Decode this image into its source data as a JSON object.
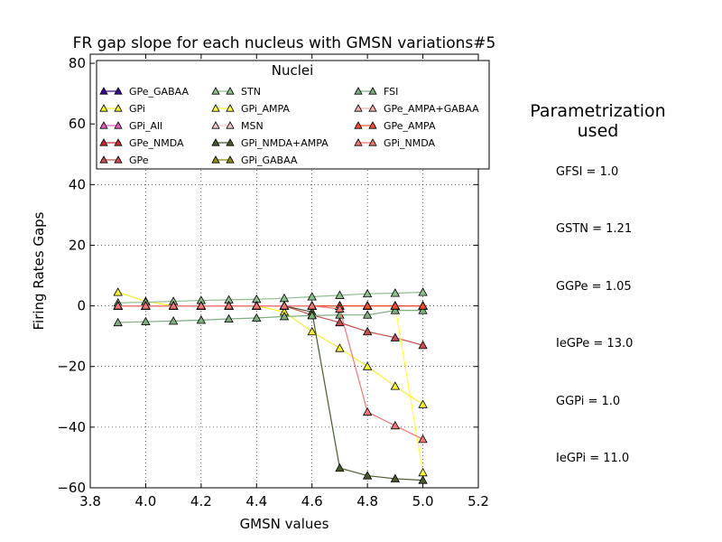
{
  "chart_data": {
    "type": "line",
    "title": "FR gap slope for each nucleus with GMSN variations#5",
    "xlabel": "GMSN values",
    "ylabel": "Firing Rates Gaps",
    "xlim": [
      3.8,
      5.2
    ],
    "ylim": [
      -60,
      83
    ],
    "xticks": [
      3.8,
      4.0,
      4.2,
      4.4,
      4.6,
      4.8,
      5.0,
      5.2
    ],
    "xtick_labels": [
      "3.8",
      "4.0",
      "4.2",
      "4.4",
      "4.6",
      "4.8",
      "5.0",
      "5.2"
    ],
    "yticks": [
      -60,
      -40,
      -20,
      0,
      20,
      40,
      60,
      80
    ],
    "ytick_labels": [
      "−60",
      "−40",
      "−20",
      "0",
      "20",
      "40",
      "60",
      "80"
    ],
    "grid": true,
    "legend_title": "Nuclei",
    "legend_position": "top",
    "x": [
      3.9,
      4.0,
      4.1,
      4.2,
      4.3,
      4.4,
      4.5,
      4.6,
      4.7,
      4.8,
      4.9,
      5.0
    ],
    "series": [
      {
        "name": "GPe_GABAA",
        "color": "#3d0a91",
        "values": [
          0,
          0,
          0,
          0,
          0,
          0,
          0,
          0,
          0,
          0,
          0,
          0
        ]
      },
      {
        "name": "GPi",
        "color": "#f5f030",
        "values": [
          4.5,
          1.5,
          0,
          0,
          0,
          0,
          -2,
          -8.5,
          -14,
          -20,
          -26.5,
          -32.5
        ]
      },
      {
        "name": "GPi_All",
        "color": "#e060c0",
        "values": [
          0,
          0,
          0,
          0,
          0,
          0,
          0,
          0,
          0,
          0,
          0,
          0
        ]
      },
      {
        "name": "GPe_NMDA",
        "color": "#c03030",
        "values": [
          0,
          0,
          0,
          0,
          0,
          0,
          0,
          0,
          0,
          0,
          0,
          0
        ]
      },
      {
        "name": "GPe",
        "color": "#c05050",
        "values": [
          0,
          0,
          0,
          0,
          0,
          0,
          0,
          -3,
          -5.5,
          -8.5,
          -10.5,
          -13
        ]
      },
      {
        "name": "STN",
        "color": "#8fbf8f",
        "values": [
          1,
          1.2,
          1.5,
          1.8,
          2,
          2.2,
          2.5,
          3,
          3.5,
          4,
          4.2,
          4.5
        ]
      },
      {
        "name": "GPi_AMPA",
        "color": "#ffff40",
        "values": [
          0,
          0,
          0,
          0,
          0,
          0,
          0,
          0,
          0,
          0,
          0,
          -55
        ]
      },
      {
        "name": "MSN",
        "color": "#f0c8c8",
        "values": [
          0,
          0,
          0,
          0,
          0,
          0,
          0,
          0,
          0,
          0,
          0,
          0
        ]
      },
      {
        "name": "GPi_NMDA+AMPA",
        "color": "#4a5a30",
        "values": [
          0,
          0,
          0,
          0,
          0,
          0,
          0,
          -2,
          -53.5,
          -56,
          -57,
          -57.5
        ]
      },
      {
        "name": "GPi_GABAA",
        "color": "#8a8a10",
        "values": [
          0,
          0,
          0,
          0,
          0,
          0,
          0,
          0,
          0,
          0,
          0,
          0
        ]
      },
      {
        "name": "FSI",
        "color": "#7fae7f",
        "values": [
          -5.5,
          -5.2,
          -5,
          -4.7,
          -4.3,
          -4,
          -3.5,
          -3.2,
          -3,
          -3,
          -1.5,
          -1.5
        ]
      },
      {
        "name": "GPe_AMPA+GABAA",
        "color": "#f0b0b0",
        "values": [
          0,
          0,
          0,
          0,
          0,
          0,
          0,
          0,
          0,
          0,
          0,
          0
        ]
      },
      {
        "name": "GPe_AMPA",
        "color": "#f05030",
        "values": [
          0,
          0,
          0,
          0,
          0,
          0,
          0,
          0,
          0,
          0,
          0,
          0
        ]
      },
      {
        "name": "GPi_NMDA",
        "color": "#f07878",
        "values": [
          0,
          0,
          0,
          0,
          0,
          0,
          0,
          0,
          -1,
          -35,
          -39.5,
          -44
        ]
      }
    ]
  },
  "sidebar": {
    "title_line1": "Parametrization",
    "title_line2": "used",
    "params": [
      "GFSI = 1.0",
      "GSTN = 1.21",
      "GGPe = 1.05",
      "IeGPe = 13.0",
      "GGPi = 1.0",
      "IeGPi = 11.0"
    ]
  }
}
